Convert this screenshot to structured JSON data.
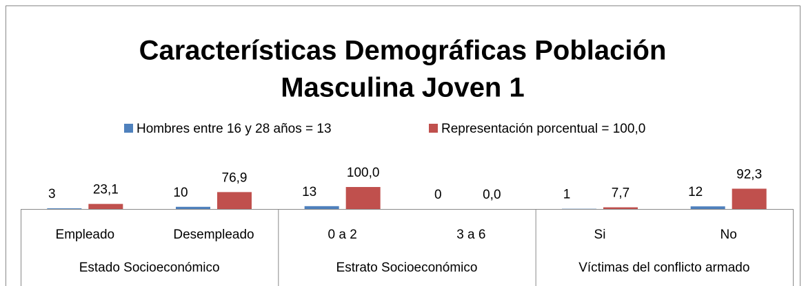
{
  "chart_data": {
    "type": "bar",
    "title": [
      "Características Demográficas Población",
      "Masculina Joven 1"
    ],
    "categories": [
      "Empleado",
      "Desempleado",
      "0 a 2",
      "3 a 6",
      "Si",
      "No"
    ],
    "groups": [
      "Estado Socioeconómico",
      "Estrato Socioeconómico",
      "Víctimas del conflicto armado"
    ],
    "series": [
      {
        "name": "Hombres entre 16 y 28 años = 13",
        "color": "#4f81bd",
        "values": [
          3,
          10,
          13,
          0,
          1,
          12
        ]
      },
      {
        "name": "Representación porcentual = 100,0",
        "color": "#c0504d",
        "values": [
          23.1,
          76.9,
          100,
          0,
          7.7,
          92.3
        ],
        "value_labels": [
          "23,1",
          "76,9",
          "100,0",
          "0,0",
          "7,7",
          "92,3"
        ]
      }
    ],
    "ylim": [
      0,
      100
    ]
  }
}
